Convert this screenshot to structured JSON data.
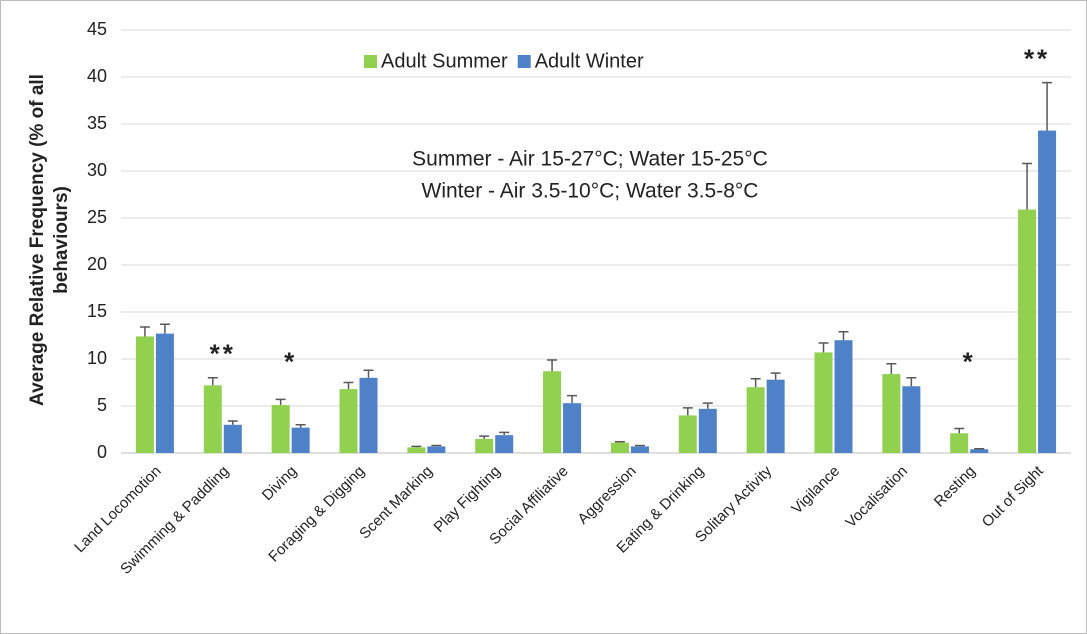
{
  "chart_data": {
    "type": "bar",
    "y_label_lines": [
      "Average Relative Frequency (% of all",
      "behaviours)"
    ],
    "categories": [
      "Land Locomotion",
      "Swimming & Paddling",
      "Diving",
      "Foraging & Digging",
      "Scent Marking",
      "Play Fighting",
      "Social Affiliative",
      "Aggression",
      "Eating & Drinking",
      "Solitary Activity",
      "Vigilance",
      "Vocalisation",
      "Resting",
      "Out of Sight"
    ],
    "series": [
      {
        "name": "Adult Summer",
        "color": "#92d050",
        "values": [
          12.4,
          7.2,
          5.1,
          6.8,
          0.6,
          1.5,
          8.7,
          1.1,
          4.0,
          7.0,
          10.7,
          8.4,
          2.1,
          25.9
        ],
        "errors": [
          1.0,
          0.8,
          0.6,
          0.7,
          0.1,
          0.3,
          1.2,
          0.1,
          0.8,
          0.9,
          1.0,
          1.1,
          0.5,
          4.9
        ]
      },
      {
        "name": "Adult Winter",
        "color": "#4f81c9",
        "values": [
          12.7,
          3.0,
          2.7,
          8.0,
          0.7,
          1.9,
          5.3,
          0.7,
          4.7,
          7.8,
          12.0,
          7.1,
          0.4,
          34.3
        ],
        "errors": [
          1.0,
          0.4,
          0.3,
          0.8,
          0.1,
          0.3,
          0.8,
          0.1,
          0.6,
          0.7,
          0.9,
          0.9,
          0.05,
          5.1
        ]
      }
    ],
    "significance": [
      null,
      "**",
      "*",
      null,
      null,
      null,
      null,
      null,
      null,
      null,
      null,
      null,
      "*",
      "**"
    ],
    "notes": [
      "Summer  - Air 15-27°C; Water 15-25°C",
      "Winter - Air 3.5-10°C; Water 3.5-8°C"
    ],
    "ylim": [
      0,
      45
    ],
    "yticks": [
      0,
      5,
      10,
      15,
      20,
      25,
      30,
      35,
      40,
      45
    ],
    "grid": true,
    "legend": "top"
  }
}
